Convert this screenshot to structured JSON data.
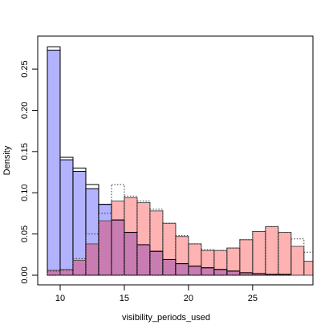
{
  "chart_data": {
    "type": "histogram",
    "x_label": "visibility_periods_used",
    "y_label": "Density",
    "bins": [
      9,
      10,
      11,
      12,
      13,
      14,
      15,
      16,
      17,
      18,
      19,
      20,
      21,
      22,
      23,
      24,
      25,
      26,
      27,
      28,
      29,
      30
    ],
    "series": [
      {
        "color": "rgba(0,0,255,0.3)",
        "stroke": "#000000",
        "line": "solid",
        "values": [
          0.273,
          0.14,
          0.126,
          0.105,
          0.086,
          0.067,
          0.052,
          0.037,
          0.029,
          0.019,
          0.014,
          0.011,
          0.009,
          0.007,
          0.005,
          0.003,
          0.002,
          0.001,
          0.001,
          0.0,
          0.0
        ]
      },
      {
        "color": "rgba(255,0,0,0.3)",
        "stroke": "#555555",
        "line": "solid",
        "values": [
          0.006,
          0.007,
          0.018,
          0.038,
          0.066,
          0.09,
          0.094,
          0.088,
          0.078,
          0.063,
          0.047,
          0.038,
          0.03,
          0.03,
          0.033,
          0.043,
          0.053,
          0.059,
          0.052,
          0.035,
          0.017
        ]
      },
      {
        "color": "none",
        "stroke": "#000000",
        "line": "solid",
        "values": [
          0.277,
          0.143,
          0.13,
          0.11,
          0.086,
          0.067,
          0.052,
          0.037,
          0.029,
          0.019,
          0.014,
          0.011,
          0.009,
          0.007,
          0.005,
          0.003,
          0.002,
          0.001,
          0.001,
          0.0,
          0.0
        ]
      },
      {
        "color": "none",
        "stroke": "#333333",
        "line": "dotted",
        "values": [
          0.005,
          0.006,
          0.02,
          0.05,
          0.075,
          0.11,
          0.096,
          0.09,
          0.08,
          0.063,
          0.048,
          0.038,
          0.031,
          0.03,
          0.033,
          0.043,
          0.053,
          0.059,
          0.052,
          0.044,
          0.028
        ]
      }
    ],
    "xlim": [
      8.25,
      29.7
    ],
    "ylim": [
      -0.0117,
      0.29
    ],
    "xticks": [
      10,
      15,
      20,
      25
    ],
    "yticks": [
      {
        "value": 0,
        "label": "0.00"
      },
      0.05,
      {
        "value": 0.1,
        "label": "0.10"
      },
      0.15,
      {
        "value": 0.2,
        "label": "0.20"
      },
      0.25
    ]
  }
}
